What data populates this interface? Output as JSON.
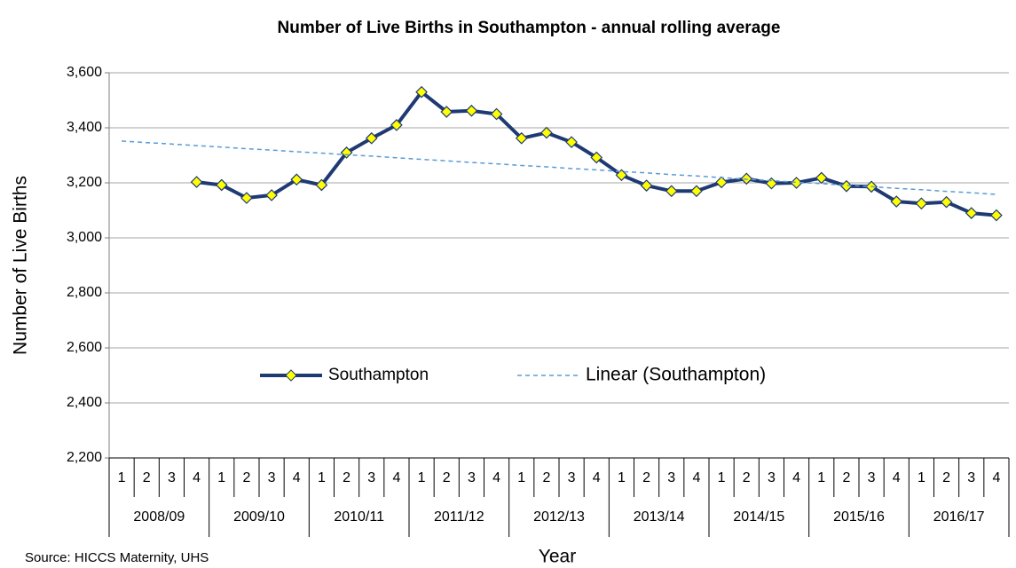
{
  "chart_data": {
    "type": "line",
    "title": "Number of Live Births in Southampton - annual rolling average",
    "xlabel": "Year",
    "ylabel": "Number of Live Births",
    "source": "Source: HICCS Maternity, UHS",
    "categories": [
      "1",
      "2",
      "3",
      "4",
      "1",
      "2",
      "3",
      "4",
      "1",
      "2",
      "3",
      "4",
      "1",
      "2",
      "3",
      "4",
      "1",
      "2",
      "3",
      "4",
      "1",
      "2",
      "3",
      "4",
      "1",
      "2",
      "3",
      "4",
      "1",
      "2",
      "3",
      "4",
      "1",
      "2",
      "3",
      "4"
    ],
    "groups": [
      "2008/09",
      "2009/10",
      "2010/11",
      "2011/12",
      "2012/13",
      "2013/14",
      "2014/15",
      "2015/16",
      "2016/17"
    ],
    "series": [
      {
        "name": "Southampton",
        "color": "#1f3a73",
        "marker_color": "#ffff00",
        "values": [
          null,
          null,
          null,
          3203,
          3192,
          3145,
          3155,
          3212,
          3192,
          3310,
          3362,
          3410,
          3530,
          3458,
          3462,
          3450,
          3362,
          3382,
          3348,
          3292,
          3228,
          3190,
          3170,
          3170,
          3202,
          3215,
          3198,
          3200,
          3218,
          3188,
          3186,
          3132,
          3125,
          3130,
          3090,
          3082
        ]
      },
      {
        "name": "Linear (Southampton)",
        "color": "#5b9bd5",
        "dashed": true,
        "values": [
          3352,
          3346,
          3341,
          3335,
          3330,
          3324,
          3319,
          3313,
          3308,
          3302,
          3297,
          3291,
          3285,
          3280,
          3274,
          3269,
          3263,
          3258,
          3252,
          3247,
          3241,
          3236,
          3230,
          3225,
          3219,
          3213,
          3208,
          3202,
          3197,
          3191,
          3186,
          3180,
          3175,
          3169,
          3164,
          3158
        ]
      }
    ],
    "ylim": [
      2200,
      3600
    ],
    "yticks": [
      {
        "value": 2200,
        "label": "2,200"
      },
      {
        "value": 2400,
        "label": "2,400"
      },
      {
        "value": 2600,
        "label": "2,600"
      },
      {
        "value": 2800,
        "label": "2,800"
      },
      {
        "value": 3000,
        "label": "3,000"
      },
      {
        "value": 3200,
        "label": "3,200"
      },
      {
        "value": 3400,
        "label": "3,400"
      },
      {
        "value": 3600,
        "label": "3,600"
      }
    ],
    "grid": true,
    "legend": "center"
  }
}
